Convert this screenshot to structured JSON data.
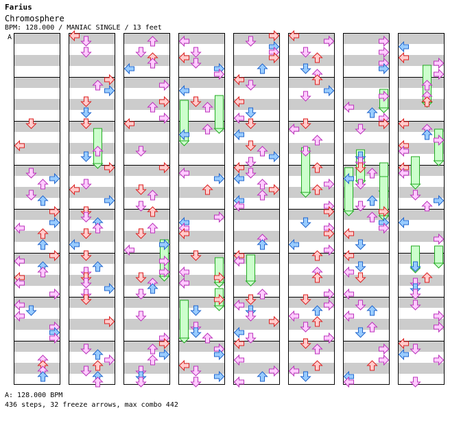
{
  "song": {
    "artist": "Farius",
    "title": "Chromosphere",
    "info": "BPM: 128.000 / MANIAC SINGLE / 13 feet",
    "marker": "A",
    "bpm_footer": "A: 128.000 BPM",
    "summary": "436 steps, 32 freeze arrows, max combo 442"
  },
  "colors": {
    "stripe_gray": "#cccccc",
    "stripe_white": "#ffffff",
    "frame": "#000000",
    "red_fill": "#ffcccc",
    "red_stroke": "#dd2222",
    "pink_fill": "#ffccff",
    "pink_stroke": "#bb33bb",
    "blue_fill": "#99ccff",
    "blue_stroke": "#2266cc",
    "freeze_fill": "#ccffcc",
    "freeze_stroke": "#22aa22"
  },
  "chart_data": {
    "type": "step-chart",
    "columns": 8,
    "measures_per_column": 8,
    "lanes": [
      "left",
      "down",
      "up",
      "right"
    ],
    "total_steps": 436,
    "freeze_arrows": 32,
    "max_combo": 442,
    "bpm": 128.0,
    "difficulty": "MANIAC",
    "style": "SINGLE",
    "feet": 13
  }
}
